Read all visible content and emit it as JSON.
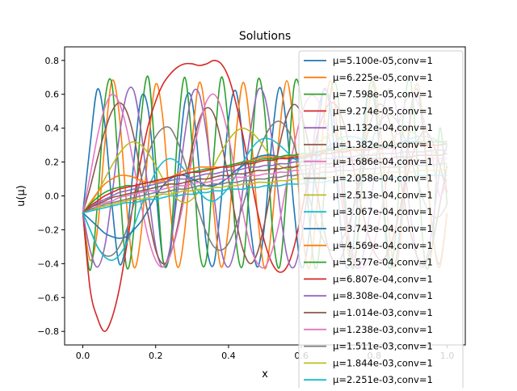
{
  "chart_data": {
    "type": "line",
    "title": "Solutions",
    "xlabel": "x",
    "ylabel": "u(μ)",
    "xlim": [
      -0.05,
      1.05
    ],
    "ylim": [
      -0.88,
      0.88
    ],
    "xticks": [
      0.0,
      0.2,
      0.4,
      0.6,
      0.8,
      1.0
    ],
    "xtick_labels": [
      "0.0",
      "0.2",
      "0.4",
      "0.6",
      "0.8",
      "1.0"
    ],
    "yticks": [
      -0.8,
      -0.6,
      -0.4,
      -0.2,
      0.0,
      0.2,
      0.4,
      0.6,
      0.8
    ],
    "ytick_labels": [
      "−0.8",
      "−0.6",
      "−0.4",
      "−0.2",
      "0.0",
      "0.2",
      "0.4",
      "0.6",
      "0.8"
    ],
    "grid": false,
    "legend_position": "top-right",
    "x": [
      0,
      0.02,
      0.04,
      0.06,
      0.08,
      0.1,
      0.12,
      0.14,
      0.16,
      0.18,
      0.2,
      0.22,
      0.24,
      0.26,
      0.28,
      0.3,
      0.32,
      0.34,
      0.36,
      0.38,
      0.4,
      0.42,
      0.44,
      0.46,
      0.48,
      0.5,
      0.52,
      0.54,
      0.56,
      0.58,
      0.6,
      0.62,
      0.64,
      0.66,
      0.68,
      0.7,
      0.72,
      0.74,
      0.76,
      0.78,
      0.8,
      0.82,
      0.84,
      0.86,
      0.88,
      0.9,
      0.92,
      0.94,
      0.96,
      0.98,
      1.0
    ],
    "series": [
      {
        "name": "μ=5.100e-05,conv=1",
        "color": "#1f77b4",
        "values": [
          -0.1,
          0.3,
          0.63,
          0.43,
          -0.05,
          -0.4,
          -0.25,
          0.2,
          0.58,
          0.5,
          0.05,
          -0.38,
          -0.33,
          0.12,
          0.55,
          0.56,
          0.15,
          -0.3,
          -0.4,
          -0.02,
          0.45,
          0.62,
          0.3,
          -0.18,
          -0.42,
          -0.15,
          0.35,
          0.64,
          0.4,
          -0.08,
          -0.42,
          -0.25,
          0.22,
          0.62,
          0.5,
          0.02,
          -0.4,
          -0.33,
          0.12,
          0.58,
          0.56,
          0.12,
          -0.35,
          -0.38,
          0.02,
          0.5,
          0.62,
          0.25,
          -0.22,
          -0.4,
          -0.1
        ]
      },
      {
        "name": "μ=6.225e-05,conv=1",
        "color": "#ff7f0e",
        "values": [
          -0.1,
          -0.38,
          -0.2,
          0.3,
          0.68,
          0.48,
          -0.05,
          -0.42,
          -0.22,
          0.3,
          0.66,
          0.45,
          -0.08,
          -0.42,
          -0.2,
          0.32,
          0.67,
          0.42,
          -0.1,
          -0.42,
          -0.18,
          0.35,
          0.67,
          0.4,
          -0.12,
          -0.43,
          -0.15,
          0.38,
          0.68,
          0.38,
          -0.15,
          -0.43,
          -0.12,
          0.4,
          0.68,
          0.35,
          -0.18,
          -0.42,
          -0.1,
          0.42,
          0.67,
          0.32,
          -0.2,
          -0.42,
          -0.08,
          0.45,
          0.66,
          0.3,
          -0.22,
          -0.42,
          -0.1
        ]
      },
      {
        "name": "μ=7.598e-05,conv=1",
        "color": "#2ca02c",
        "values": [
          -0.1,
          -0.44,
          -0.05,
          0.55,
          0.66,
          0.1,
          -0.42,
          -0.2,
          0.45,
          0.7,
          0.2,
          -0.38,
          -0.3,
          0.35,
          0.7,
          0.3,
          -0.32,
          -0.36,
          0.25,
          0.7,
          0.4,
          -0.25,
          -0.4,
          0.15,
          0.68,
          0.48,
          -0.18,
          -0.42,
          0.05,
          0.65,
          0.55,
          -0.1,
          -0.43,
          -0.05,
          0.6,
          0.6,
          0.0,
          -0.43,
          -0.12,
          0.55,
          0.64,
          0.08,
          -0.42,
          -0.2,
          0.48,
          0.68,
          0.15,
          -0.4,
          -0.28,
          0.4,
          -0.05
        ]
      },
      {
        "name": "μ=9.274e-05,conv=1",
        "color": "#d62728",
        "values": [
          -0.1,
          -0.55,
          -0.72,
          -0.8,
          -0.72,
          -0.55,
          -0.3,
          -0.02,
          0.22,
          0.42,
          0.56,
          0.66,
          0.72,
          0.76,
          0.78,
          0.78,
          0.77,
          0.78,
          0.8,
          0.78,
          0.7,
          0.55,
          0.35,
          0.12,
          -0.1,
          -0.28,
          -0.4,
          -0.45,
          -0.42,
          -0.3,
          -0.1,
          0.12,
          0.33,
          0.48,
          0.55,
          0.52,
          0.4,
          0.2,
          -0.02,
          -0.2,
          -0.33,
          -0.38,
          -0.32,
          -0.18,
          0.02,
          0.2,
          0.33,
          0.38,
          0.32,
          0.18,
          0.02
        ]
      },
      {
        "name": "μ=1.132e-04,conv=1",
        "color": "#9467bd",
        "values": [
          -0.1,
          -0.32,
          -0.42,
          -0.3,
          0.0,
          0.35,
          0.6,
          0.62,
          0.38,
          0.02,
          -0.3,
          -0.42,
          -0.3,
          0.02,
          0.36,
          0.6,
          0.6,
          0.36,
          0.0,
          -0.32,
          -0.42,
          -0.28,
          0.05,
          0.38,
          0.62,
          0.58,
          0.32,
          -0.05,
          -0.35,
          -0.42,
          -0.25,
          0.08,
          0.42,
          0.62,
          0.56,
          0.28,
          -0.08,
          -0.36,
          -0.42,
          -0.22,
          0.12,
          0.45,
          0.63,
          0.52,
          0.22,
          -0.12,
          -0.38,
          -0.4,
          -0.18,
          0.15,
          0.3
        ]
      },
      {
        "name": "μ=1.382e-04,conv=1",
        "color": "#8c564b",
        "values": [
          -0.1,
          0.05,
          0.22,
          0.38,
          0.5,
          0.55,
          0.5,
          0.35,
          0.12,
          -0.12,
          -0.32,
          -0.4,
          -0.35,
          -0.18,
          0.05,
          0.28,
          0.45,
          0.52,
          0.48,
          0.32,
          0.1,
          -0.14,
          -0.32,
          -0.4,
          -0.33,
          -0.15,
          0.08,
          0.3,
          0.47,
          0.54,
          0.48,
          0.3,
          0.06,
          -0.18,
          -0.35,
          -0.4,
          -0.3,
          -0.1,
          0.14,
          0.35,
          0.5,
          0.54,
          0.45,
          0.25,
          0.0,
          -0.22,
          -0.37,
          -0.4,
          -0.28,
          -0.05,
          0.18
        ]
      },
      {
        "name": "μ=1.686e-04,conv=1",
        "color": "#e377c2",
        "values": [
          -0.1,
          0.12,
          0.35,
          0.52,
          0.6,
          0.55,
          0.4,
          0.18,
          -0.05,
          -0.25,
          -0.38,
          -0.42,
          -0.35,
          -0.2,
          0.0,
          0.22,
          0.42,
          0.56,
          0.6,
          0.52,
          0.35,
          0.12,
          -0.1,
          -0.3,
          -0.4,
          -0.42,
          -0.32,
          -0.15,
          0.08,
          0.3,
          0.48,
          0.58,
          0.58,
          0.48,
          0.3,
          0.08,
          -0.15,
          -0.33,
          -0.42,
          -0.4,
          -0.28,
          -0.08,
          0.15,
          0.36,
          0.52,
          0.6,
          0.55,
          0.42,
          0.22,
          0.0,
          0.1
        ]
      },
      {
        "name": "μ=2.058e-04,conv=1",
        "color": "#7f7f7f",
        "values": [
          -0.1,
          -0.2,
          -0.3,
          -0.35,
          -0.35,
          -0.3,
          -0.2,
          -0.05,
          0.1,
          0.25,
          0.35,
          0.4,
          0.4,
          0.32,
          0.2,
          0.05,
          -0.1,
          -0.22,
          -0.3,
          -0.32,
          -0.28,
          -0.18,
          -0.05,
          0.1,
          0.24,
          0.35,
          0.42,
          0.44,
          0.4,
          0.3,
          0.15,
          0.0,
          -0.15,
          -0.26,
          -0.32,
          -0.3,
          -0.22,
          -0.1,
          0.06,
          0.22,
          0.36,
          0.45,
          0.48,
          0.45,
          0.36,
          0.22,
          0.08,
          -0.05,
          -0.12,
          -0.12,
          -0.05
        ]
      },
      {
        "name": "μ=2.513e-04,conv=1",
        "color": "#bcbd22",
        "values": [
          -0.1,
          -0.05,
          0.02,
          0.1,
          0.18,
          0.25,
          0.3,
          0.32,
          0.3,
          0.25,
          0.18,
          0.1,
          0.03,
          -0.02,
          -0.04,
          -0.02,
          0.03,
          0.1,
          0.18,
          0.26,
          0.33,
          0.38,
          0.4,
          0.38,
          0.34,
          0.28,
          0.22,
          0.18,
          0.16,
          0.17,
          0.2,
          0.25,
          0.3,
          0.34,
          0.36,
          0.35,
          0.32,
          0.28,
          0.25,
          0.24,
          0.25,
          0.28,
          0.32,
          0.36,
          0.38,
          0.38,
          0.35,
          0.3,
          0.26,
          0.24,
          0.25
        ]
      },
      {
        "name": "μ=3.067e-04,conv=1",
        "color": "#17becf",
        "values": [
          -0.1,
          -0.2,
          -0.3,
          -0.36,
          -0.38,
          -0.35,
          -0.28,
          -0.18,
          -0.06,
          0.05,
          0.14,
          0.2,
          0.22,
          0.2,
          0.15,
          0.08,
          0.02,
          -0.02,
          -0.03,
          0.0,
          0.05,
          0.12,
          0.2,
          0.27,
          0.32,
          0.34,
          0.33,
          0.3,
          0.26,
          0.22,
          0.2,
          0.2,
          0.22,
          0.26,
          0.3,
          0.33,
          0.35,
          0.35,
          0.34,
          0.32,
          0.3,
          0.29,
          0.29,
          0.3,
          0.32,
          0.34,
          0.35,
          0.35,
          0.34,
          0.32,
          0.3
        ]
      },
      {
        "name": "μ=3.743e-04,conv=1",
        "color": "#1f77b4",
        "values": [
          -0.1,
          -0.14,
          -0.18,
          -0.22,
          -0.24,
          -0.25,
          -0.24,
          -0.2,
          -0.15,
          -0.08,
          0.0,
          0.06,
          0.1,
          0.12,
          0.12,
          0.1,
          0.08,
          0.06,
          0.06,
          0.08,
          0.11,
          0.15,
          0.18,
          0.21,
          0.23,
          0.24,
          0.24,
          0.23,
          0.22,
          0.22,
          0.22,
          0.23,
          0.25,
          0.27,
          0.28,
          0.29,
          0.29,
          0.29,
          0.28,
          0.28,
          0.28,
          0.29,
          0.3,
          0.31,
          0.32,
          0.32,
          0.32,
          0.32,
          0.32,
          0.32,
          0.32
        ]
      },
      {
        "name": "μ=4.569e-04,conv=1",
        "color": "#ff7f0e",
        "values": [
          -0.1,
          -0.04,
          0.02,
          0.07,
          0.1,
          0.12,
          0.12,
          0.11,
          0.09,
          0.08,
          0.08,
          0.09,
          0.11,
          0.13,
          0.15,
          0.16,
          0.17,
          0.17,
          0.17,
          0.17,
          0.18,
          0.19,
          0.2,
          0.21,
          0.22,
          0.23,
          0.23,
          0.23,
          0.23,
          0.24,
          0.24,
          0.25,
          0.26,
          0.27,
          0.27,
          0.27,
          0.27,
          0.28,
          0.28,
          0.29,
          0.29,
          0.3,
          0.3,
          0.31,
          0.31,
          0.31,
          0.31,
          0.32,
          0.32,
          0.32,
          0.32
        ]
      },
      {
        "name": "μ=5.577e-04,conv=1",
        "color": "#2ca02c",
        "values": [
          -0.1,
          -0.05,
          -0.01,
          0.02,
          0.04,
          0.05,
          0.06,
          0.06,
          0.07,
          0.08,
          0.09,
          0.1,
          0.11,
          0.12,
          0.13,
          0.14,
          0.15,
          0.16,
          0.16,
          0.17,
          0.18,
          0.19,
          0.2,
          0.2,
          0.21,
          0.22,
          0.22,
          0.23,
          0.24,
          0.24,
          0.25,
          0.25,
          0.26,
          0.26,
          0.27,
          0.27,
          0.28,
          0.28,
          0.29,
          0.29,
          0.29,
          0.3,
          0.3,
          0.3,
          0.31,
          0.31,
          0.31,
          0.31,
          0.32,
          0.32,
          0.32
        ]
      },
      {
        "name": "μ=6.807e-04,conv=1",
        "color": "#d62728",
        "values": [
          -0.1,
          -0.06,
          -0.03,
          0.0,
          0.02,
          0.04,
          0.05,
          0.06,
          0.07,
          0.08,
          0.09,
          0.1,
          0.11,
          0.12,
          0.13,
          0.14,
          0.14,
          0.15,
          0.16,
          0.17,
          0.17,
          0.18,
          0.19,
          0.19,
          0.2,
          0.21,
          0.21,
          0.22,
          0.22,
          0.23,
          0.23,
          0.24,
          0.24,
          0.25,
          0.25,
          0.26,
          0.26,
          0.27,
          0.27,
          0.27,
          0.28,
          0.28,
          0.28,
          0.29,
          0.29,
          0.29,
          0.3,
          0.3,
          0.3,
          0.3,
          0.31
        ]
      },
      {
        "name": "μ=8.308e-04,conv=1",
        "color": "#9467bd",
        "values": [
          -0.1,
          -0.07,
          -0.04,
          -0.02,
          0.0,
          0.02,
          0.03,
          0.04,
          0.05,
          0.06,
          0.07,
          0.08,
          0.09,
          0.1,
          0.1,
          0.11,
          0.12,
          0.13,
          0.13,
          0.14,
          0.15,
          0.15,
          0.16,
          0.17,
          0.17,
          0.18,
          0.18,
          0.19,
          0.19,
          0.2,
          0.2,
          0.21,
          0.21,
          0.22,
          0.22,
          0.23,
          0.23,
          0.23,
          0.24,
          0.24,
          0.24,
          0.25,
          0.25,
          0.25,
          0.26,
          0.26,
          0.26,
          0.26,
          0.27,
          0.27,
          0.27
        ]
      },
      {
        "name": "μ=1.014e-03,conv=1",
        "color": "#8c564b",
        "values": [
          -0.1,
          -0.07,
          -0.05,
          -0.03,
          -0.01,
          0.0,
          0.01,
          0.02,
          0.03,
          0.04,
          0.05,
          0.06,
          0.07,
          0.07,
          0.08,
          0.09,
          0.1,
          0.1,
          0.11,
          0.12,
          0.12,
          0.13,
          0.13,
          0.14,
          0.15,
          0.15,
          0.16,
          0.16,
          0.17,
          0.17,
          0.18,
          0.18,
          0.19,
          0.19,
          0.19,
          0.2,
          0.2,
          0.21,
          0.21,
          0.21,
          0.22,
          0.22,
          0.22,
          0.23,
          0.23,
          0.23,
          0.24,
          0.24,
          0.24,
          0.24,
          0.25
        ]
      },
      {
        "name": "μ=1.238e-03,conv=1",
        "color": "#e377c2",
        "values": [
          -0.1,
          -0.08,
          -0.06,
          -0.04,
          -0.03,
          -0.01,
          0.0,
          0.01,
          0.02,
          0.03,
          0.03,
          0.04,
          0.05,
          0.06,
          0.06,
          0.07,
          0.08,
          0.08,
          0.09,
          0.1,
          0.1,
          0.11,
          0.11,
          0.12,
          0.12,
          0.13,
          0.13,
          0.14,
          0.14,
          0.15,
          0.15,
          0.16,
          0.16,
          0.17,
          0.17,
          0.17,
          0.18,
          0.18,
          0.18,
          0.19,
          0.19,
          0.19,
          0.2,
          0.2,
          0.2,
          0.21,
          0.21,
          0.21,
          0.22,
          0.22,
          0.22
        ]
      },
      {
        "name": "μ=1.511e-03,conv=1",
        "color": "#7f7f7f",
        "values": [
          -0.1,
          -0.08,
          -0.07,
          -0.05,
          -0.04,
          -0.03,
          -0.02,
          -0.01,
          0.0,
          0.01,
          0.02,
          0.02,
          0.03,
          0.04,
          0.04,
          0.05,
          0.06,
          0.06,
          0.07,
          0.07,
          0.08,
          0.08,
          0.09,
          0.09,
          0.1,
          0.1,
          0.11,
          0.11,
          0.12,
          0.12,
          0.13,
          0.13,
          0.13,
          0.14,
          0.14,
          0.15,
          0.15,
          0.15,
          0.16,
          0.16,
          0.16,
          0.17,
          0.17,
          0.17,
          0.17,
          0.18,
          0.18,
          0.18,
          0.18,
          0.19,
          0.19
        ]
      },
      {
        "name": "μ=1.844e-03,conv=1",
        "color": "#bcbd22",
        "values": [
          -0.1,
          -0.09,
          -0.07,
          -0.06,
          -0.05,
          -0.04,
          -0.03,
          -0.02,
          -0.02,
          -0.01,
          0.0,
          0.01,
          0.01,
          0.02,
          0.03,
          0.03,
          0.04,
          0.04,
          0.05,
          0.05,
          0.06,
          0.06,
          0.07,
          0.07,
          0.08,
          0.08,
          0.08,
          0.09,
          0.09,
          0.1,
          0.1,
          0.1,
          0.11,
          0.11,
          0.11,
          0.12,
          0.12,
          0.12,
          0.13,
          0.13,
          0.13,
          0.13,
          0.14,
          0.14,
          0.14,
          0.14,
          0.15,
          0.15,
          0.15,
          0.15,
          0.16
        ]
      },
      {
        "name": "μ=2.251e-03,conv=1",
        "color": "#17becf",
        "values": [
          -0.1,
          -0.09,
          -0.08,
          -0.07,
          -0.06,
          -0.05,
          -0.04,
          -0.04,
          -0.03,
          -0.02,
          -0.02,
          -0.01,
          0.0,
          0.0,
          0.01,
          0.01,
          0.02,
          0.02,
          0.03,
          0.03,
          0.04,
          0.04,
          0.04,
          0.05,
          0.05,
          0.06,
          0.06,
          0.06,
          0.07,
          0.07,
          0.07,
          0.08,
          0.08,
          0.08,
          0.09,
          0.09,
          0.09,
          0.09,
          0.1,
          0.1,
          0.1,
          0.1,
          0.11,
          0.11,
          0.11,
          0.11,
          0.12,
          0.12,
          0.12,
          0.12,
          0.12
        ]
      }
    ]
  }
}
